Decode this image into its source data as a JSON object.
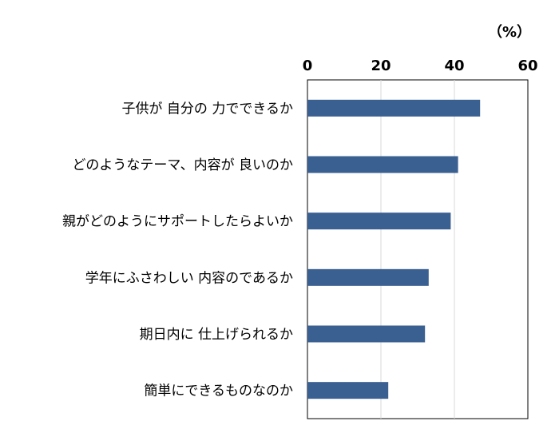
{
  "chart_data": {
    "type": "bar",
    "orientation": "horizontal",
    "unit_label": "（%）",
    "categories": [
      "子供が 自分の 力でできるか",
      "どのようなテーマ、内容が 良いのか",
      "親がどのようにサポートしたらよいか",
      "学年にふさわしい 内容のであるか",
      "期日内に 仕上げられるか",
      "簡単にできるものなのか"
    ],
    "values": [
      47,
      41,
      39,
      33,
      32,
      22
    ],
    "xlim": [
      0,
      60
    ],
    "xticks": [
      "0",
      "20",
      "40",
      "60"
    ],
    "xaxis_position": "top",
    "grid": true,
    "bar_color": "#3a5f91",
    "title": "",
    "xlabel": "",
    "ylabel": ""
  }
}
